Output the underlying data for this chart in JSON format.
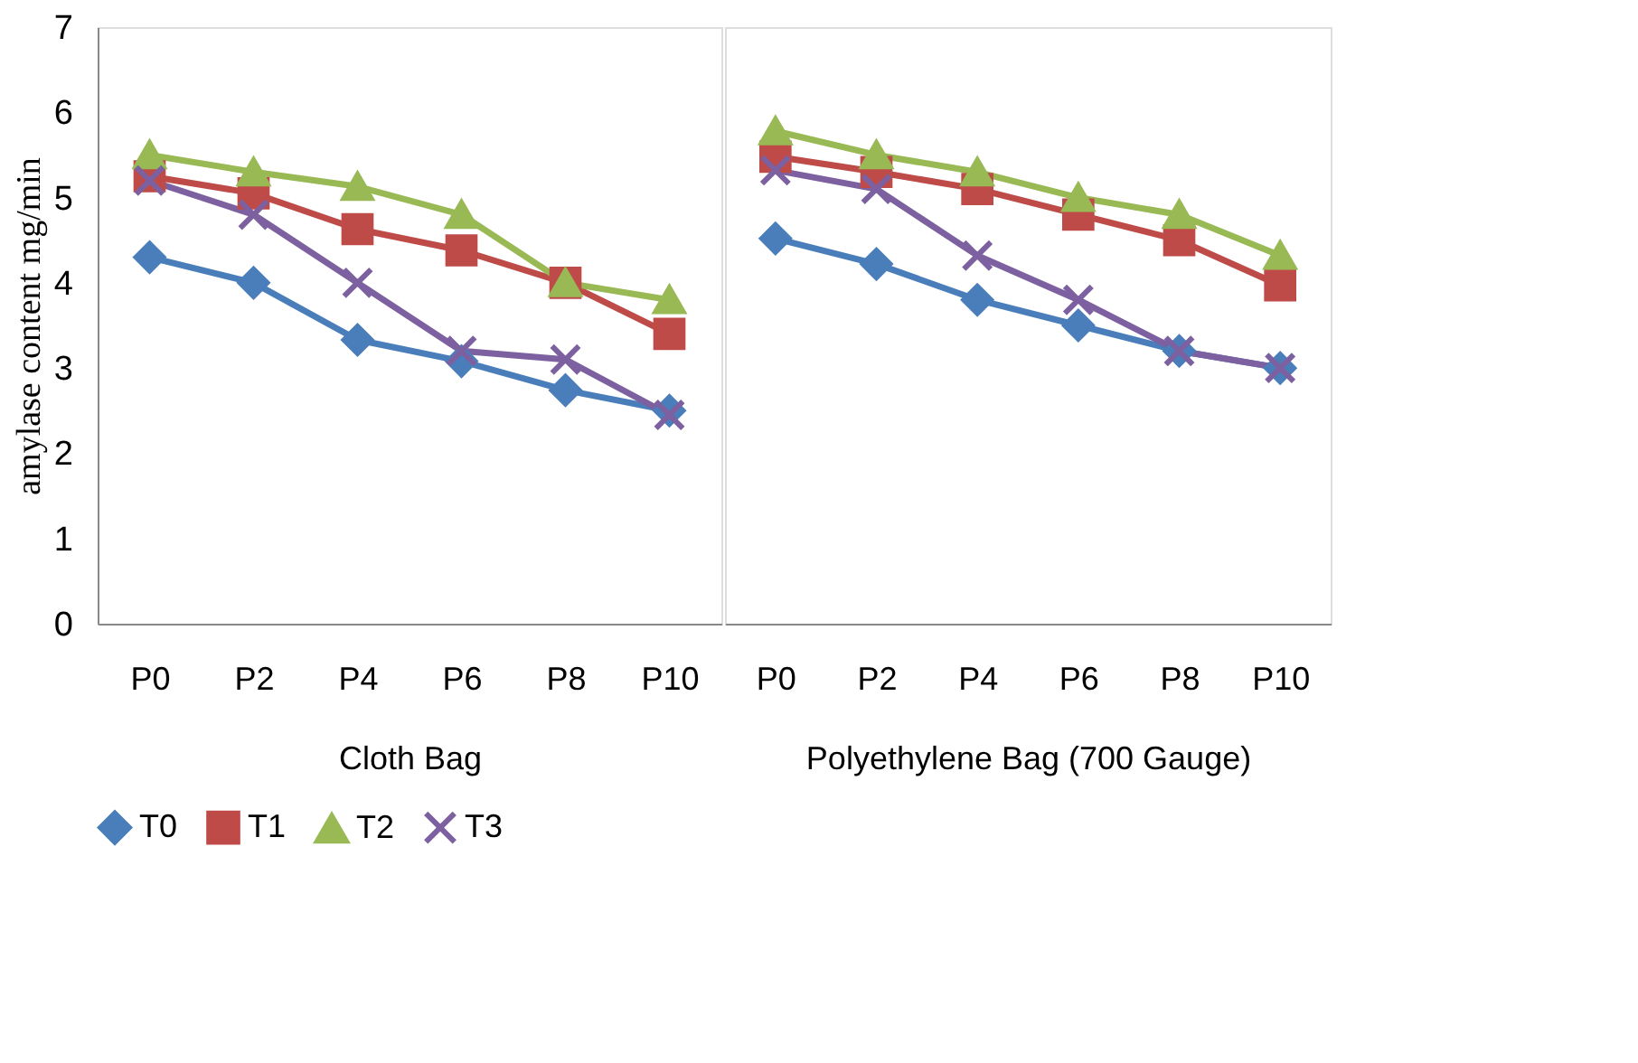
{
  "chart_data": [
    {
      "type": "line",
      "ylabel": "amylase content mg/min",
      "xlabel": "Cloth Bag",
      "categories": [
        "P0",
        "P2",
        "P4",
        "P6",
        "P8",
        "P10"
      ],
      "ylim": [
        0,
        7
      ],
      "yticks": [
        0,
        1,
        2,
        3,
        4,
        5,
        6,
        7
      ],
      "grid": false,
      "legend": "bottom",
      "series": [
        {
          "name": "T0",
          "color": "#4a7ebb",
          "marker": "diamond",
          "values": [
            4.3,
            4.0,
            3.33,
            3.08,
            2.74,
            2.5
          ]
        },
        {
          "name": "T1",
          "color": "#be4b48",
          "marker": "square",
          "values": [
            5.25,
            5.05,
            4.63,
            4.38,
            4.0,
            3.4
          ]
        },
        {
          "name": "T2",
          "color": "#98b954",
          "marker": "triangle",
          "values": [
            5.5,
            5.3,
            5.13,
            4.8,
            4.0,
            3.8
          ]
        },
        {
          "name": "T3",
          "color": "#7d60a0",
          "marker": "cross",
          "values": [
            5.2,
            4.8,
            4.0,
            3.2,
            3.1,
            2.45
          ]
        }
      ]
    },
    {
      "type": "line",
      "xlabel": "Polyethylene Bag (700 Gauge)",
      "categories": [
        "P0",
        "P2",
        "P4",
        "P6",
        "P8",
        "P10"
      ],
      "ylim": [
        0,
        7
      ],
      "yticks": [
        0,
        1,
        2,
        3,
        4,
        5,
        6,
        7
      ],
      "tick_labels": "x",
      "grid": false,
      "legend": "bottom",
      "series": [
        {
          "name": "T0",
          "color": "#4a7ebb",
          "marker": "diamond",
          "values": [
            4.52,
            4.22,
            3.8,
            3.5,
            3.2,
            3.0
          ]
        },
        {
          "name": "T1",
          "color": "#be4b48",
          "marker": "square",
          "values": [
            5.48,
            5.3,
            5.1,
            4.8,
            4.5,
            3.97
          ]
        },
        {
          "name": "T2",
          "color": "#98b954",
          "marker": "triangle",
          "values": [
            5.78,
            5.5,
            5.3,
            5.0,
            4.8,
            4.32
          ]
        },
        {
          "name": "T3",
          "color": "#7d60a0",
          "marker": "cross",
          "values": [
            5.32,
            5.1,
            4.32,
            3.8,
            3.2,
            3.0
          ]
        }
      ]
    }
  ]
}
